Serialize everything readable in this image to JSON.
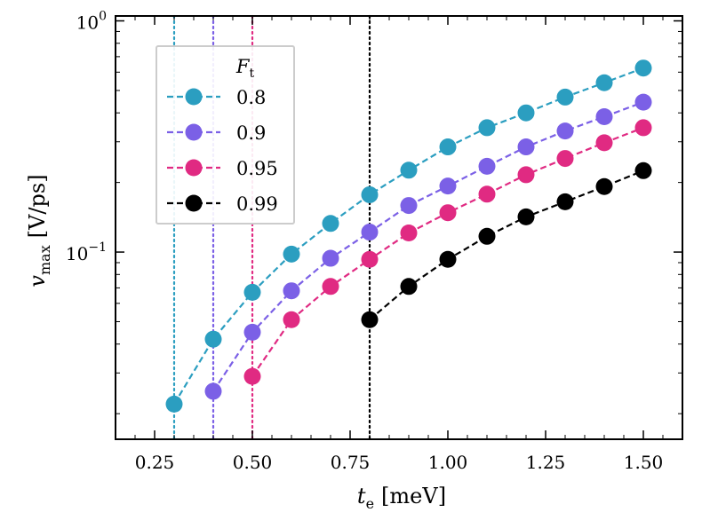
{
  "chart_data": {
    "type": "line",
    "xlabel_main": "t",
    "xlabel_sub": "e",
    "xlabel_unit": "[meV]",
    "ylabel_main": "v",
    "ylabel_sub": "max",
    "ylabel_unit": "[V/ps]",
    "x_scale": "linear",
    "y_scale": "log",
    "xlim": [
      0.15,
      1.6
    ],
    "ylim": [
      0.0155,
      1.05
    ],
    "x_ticks": [
      0.25,
      0.5,
      0.75,
      1.0,
      1.25,
      1.5
    ],
    "x_tick_labels": [
      "0.25",
      "0.50",
      "0.75",
      "1.00",
      "1.25",
      "1.50"
    ],
    "y_major_ticks": [
      {
        "value": 0.1,
        "base": "10",
        "exp": "−1"
      },
      {
        "value": 1.0,
        "base": "10",
        "exp": "0"
      }
    ],
    "grid": false,
    "legend": {
      "placement": "top-left",
      "title_main": "F",
      "title_sub": "t"
    },
    "series": [
      {
        "name": "0.8",
        "color": "#2b9ec0",
        "threshold": 0.3,
        "x": [
          0.3,
          0.4,
          0.5,
          0.6,
          0.7,
          0.8,
          0.9,
          1.0,
          1.1,
          1.2,
          1.3,
          1.4,
          1.5
        ],
        "values": [
          0.022,
          0.042,
          0.067,
          0.098,
          0.133,
          0.177,
          0.226,
          0.285,
          0.345,
          0.4,
          0.468,
          0.54,
          0.625
        ]
      },
      {
        "name": "0.9",
        "color": "#7b60e6",
        "threshold": 0.4,
        "x": [
          0.4,
          0.5,
          0.6,
          0.7,
          0.8,
          0.9,
          1.0,
          1.1,
          1.2,
          1.3,
          1.4,
          1.5
        ],
        "values": [
          0.025,
          0.045,
          0.068,
          0.094,
          0.122,
          0.159,
          0.193,
          0.235,
          0.285,
          0.334,
          0.385,
          0.445
        ]
      },
      {
        "name": "0.95",
        "color": "#e02a82",
        "threshold": 0.5,
        "x": [
          0.5,
          0.6,
          0.7,
          0.8,
          0.9,
          1.0,
          1.1,
          1.2,
          1.3,
          1.4,
          1.5
        ],
        "values": [
          0.029,
          0.051,
          0.071,
          0.093,
          0.121,
          0.148,
          0.178,
          0.216,
          0.254,
          0.297,
          0.345
        ]
      },
      {
        "name": "0.99",
        "color": "#000000",
        "threshold": 0.8,
        "x": [
          0.8,
          0.9,
          1.0,
          1.1,
          1.2,
          1.3,
          1.4,
          1.5
        ],
        "values": [
          0.051,
          0.071,
          0.093,
          0.117,
          0.142,
          0.165,
          0.192,
          0.225
        ]
      }
    ]
  }
}
